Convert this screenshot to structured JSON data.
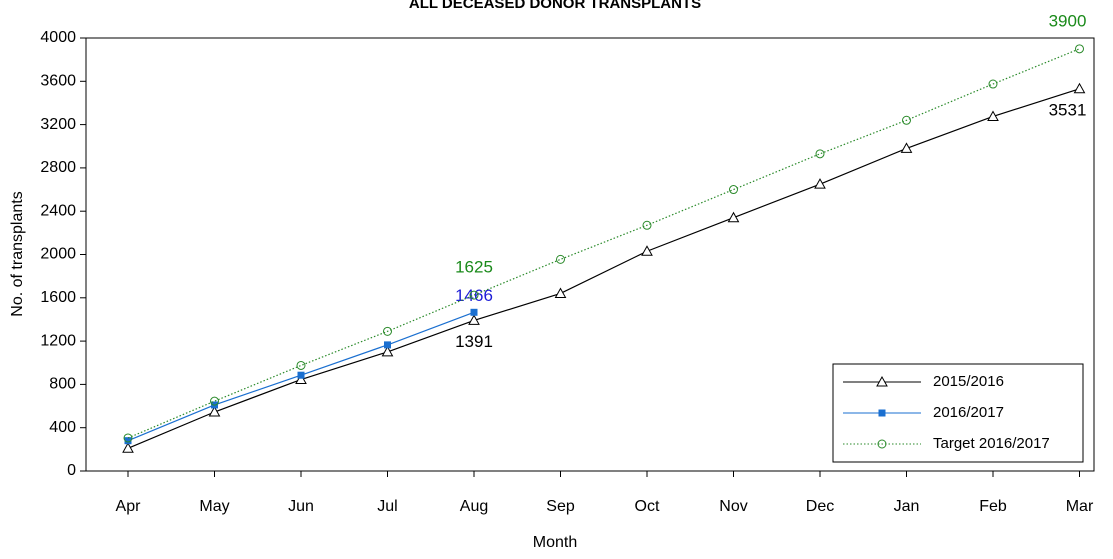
{
  "chart_data": {
    "type": "line",
    "title": "ALL DECEASED DONOR TRANSPLANTS",
    "x_label": "Month",
    "y_label": "No. of transplants",
    "categories": [
      "Apr",
      "May",
      "Jun",
      "Jul",
      "Aug",
      "Sep",
      "Oct",
      "Nov",
      "Dec",
      "Jan",
      "Feb",
      "Mar"
    ],
    "ylim": [
      0,
      4000
    ],
    "yticks": [
      0,
      400,
      800,
      1200,
      1600,
      2000,
      2400,
      2800,
      3200,
      3600,
      4000
    ],
    "legend": "bottom-right",
    "series": [
      {
        "name": "2015/2016",
        "color": "#000000",
        "marker": "triangle",
        "line_style": "solid",
        "values": [
          210,
          545,
          845,
          1100,
          1391,
          1640,
          2030,
          2340,
          2650,
          2980,
          3275,
          3531
        ],
        "value_labels": [
          null,
          null,
          null,
          null,
          "1391",
          null,
          null,
          null,
          null,
          null,
          null,
          "3531"
        ],
        "label_position": "below"
      },
      {
        "name": "2016/2017",
        "color": "#1a6fd0",
        "marker": "square",
        "line_style": "solid",
        "values": [
          280,
          610,
          885,
          1165,
          1466,
          null,
          null,
          null,
          null,
          null,
          null,
          null
        ],
        "value_labels": [
          null,
          null,
          null,
          null,
          "1466",
          null,
          null,
          null,
          null,
          null,
          null,
          null
        ],
        "label_position": "above",
        "label_color": "#1c1cd6"
      },
      {
        "name": "Target 2016/2017",
        "color": "#2a8a2a",
        "marker": "circle",
        "line_style": "dotted",
        "values": [
          305,
          645,
          975,
          1290,
          1625,
          1955,
          2270,
          2600,
          2930,
          3240,
          3575,
          3900
        ],
        "value_labels": [
          null,
          null,
          null,
          null,
          "1625",
          null,
          null,
          null,
          null,
          null,
          null,
          "3900"
        ],
        "label_position": "above2",
        "label_color": "#1a8a1a"
      }
    ]
  }
}
